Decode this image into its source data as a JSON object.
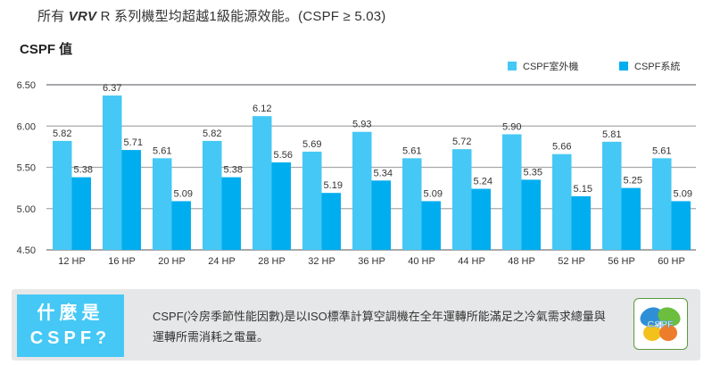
{
  "headline": {
    "prefix": "所有 ",
    "brand": "VRV",
    "suffix": " R 系列機型均超越1級能源效能。(CSPF ≥ 5.03)"
  },
  "chart_title": "CSPF 值",
  "colors": {
    "outdoor": "#45c8f5",
    "system": "#00aeef",
    "grid": "#a7a9ac",
    "panel_bg": "#e6e7e8",
    "question_box": "#45c8f5"
  },
  "chart_data": {
    "type": "bar",
    "title": "CSPF 值",
    "xlabel": "",
    "ylabel": "",
    "ylim": [
      4.5,
      6.5
    ],
    "yticks": [
      "4.50",
      "5.00",
      "5.50",
      "6.00",
      "6.50"
    ],
    "grid": true,
    "legend_position": "top-right",
    "categories": [
      "12 HP",
      "16 HP",
      "20 HP",
      "24 HP",
      "28 HP",
      "32 HP",
      "36 HP",
      "40 HP",
      "44 HP",
      "48 HP",
      "52 HP",
      "56 HP",
      "60 HP"
    ],
    "series": [
      {
        "name": "CSPF室外機",
        "values": [
          5.82,
          6.37,
          5.61,
          5.82,
          6.12,
          5.69,
          5.93,
          5.61,
          5.72,
          5.9,
          5.66,
          5.81,
          5.61
        ]
      },
      {
        "name": "CSPF系統",
        "values": [
          5.38,
          5.71,
          5.09,
          5.38,
          5.56,
          5.19,
          5.34,
          5.09,
          5.24,
          5.35,
          5.15,
          5.25,
          5.09
        ]
      }
    ]
  },
  "info_panel": {
    "question_line1": "什麼是",
    "question_line2": "CSPF?",
    "description": "CSPF(冷房季節性能因數)是以ISO標準計算空調機在全年運轉所能滿足之冷氣需求總量與運轉所需消耗之電量。",
    "logo_text": "CSPF",
    "logo_icon": "butterfly-logo-icon"
  }
}
